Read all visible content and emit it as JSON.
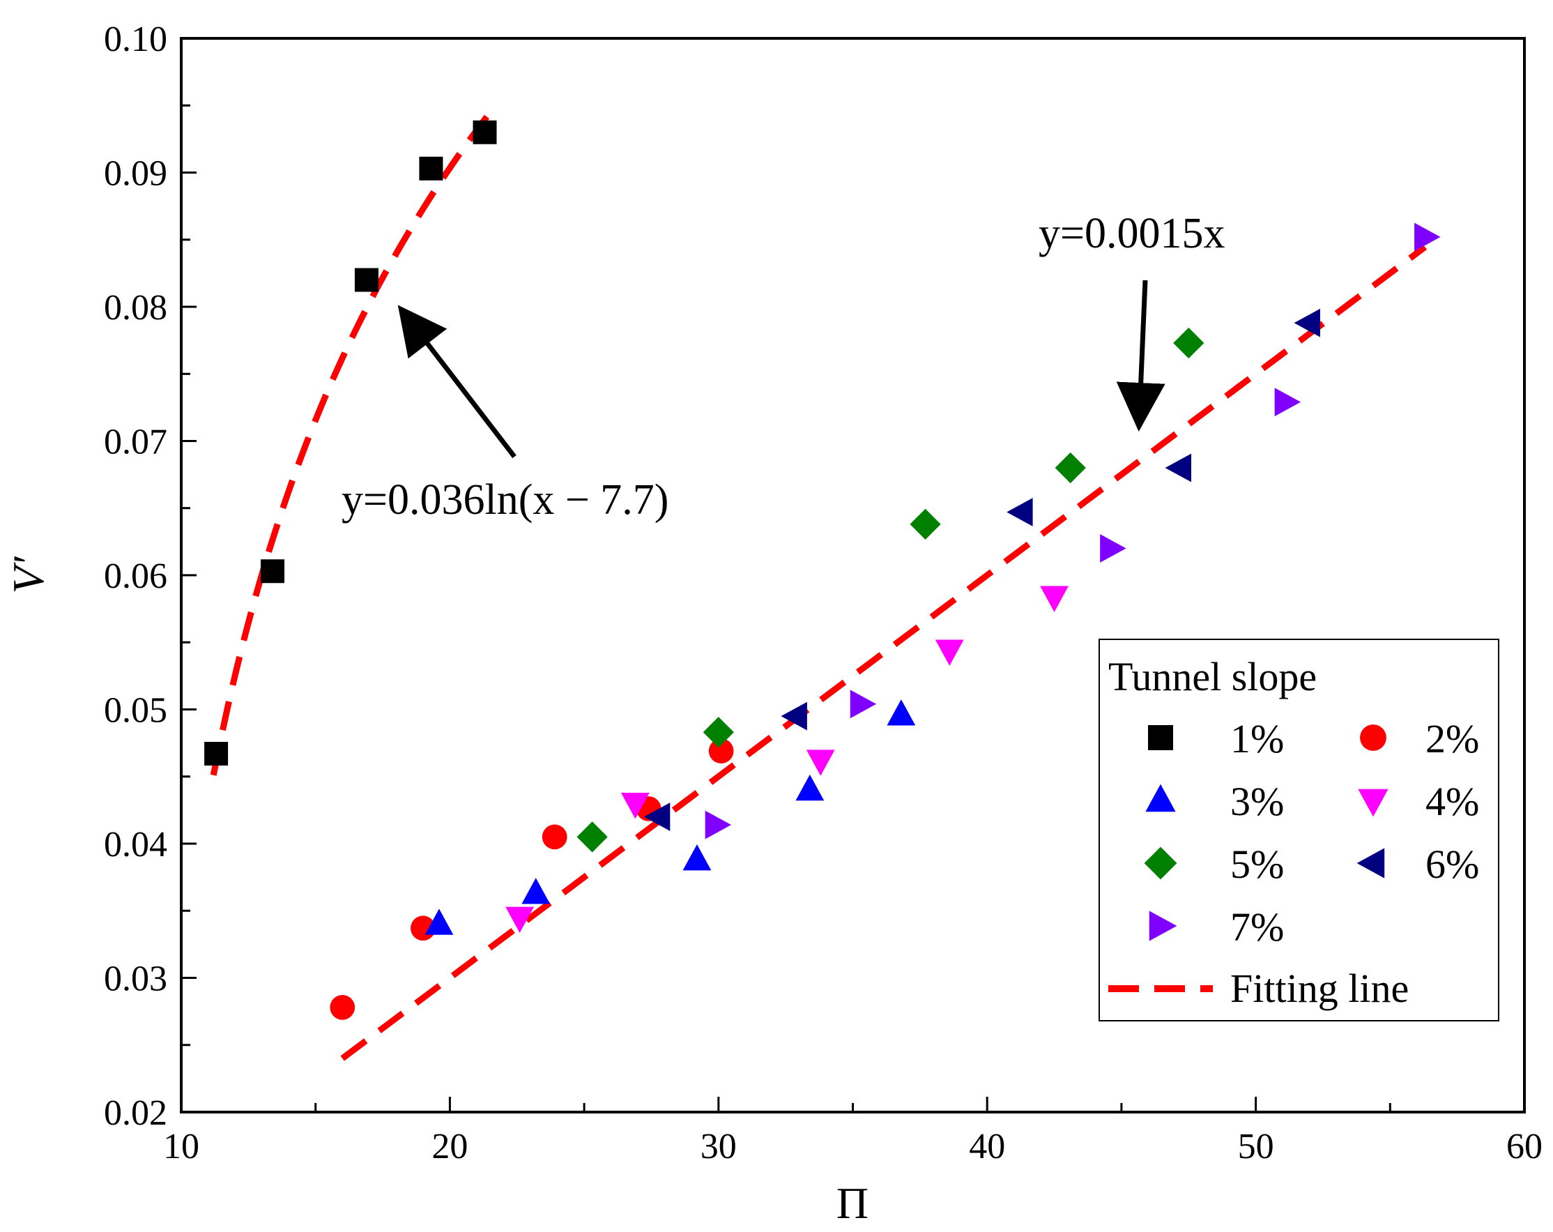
{
  "chart_data": {
    "type": "scatter",
    "title": "",
    "xlabel": "Π",
    "ylabel": "V′",
    "xlim": [
      10,
      60
    ],
    "ylim": [
      0.02,
      0.1
    ],
    "xticks": [
      10,
      20,
      30,
      40,
      50,
      60
    ],
    "xtick_labels": [
      "10",
      "20",
      "30",
      "40",
      "50",
      "60"
    ],
    "yticks": [
      0.02,
      0.03,
      0.04,
      0.05,
      0.06,
      0.07,
      0.08,
      0.09,
      0.1
    ],
    "ytick_labels": [
      "0.02",
      "0.03",
      "0.04",
      "0.05",
      "0.06",
      "0.07",
      "0.08",
      "0.09",
      "0.10"
    ],
    "grid": false,
    "legend": {
      "title": "Tunnel slope",
      "placement": "bottom-right",
      "fit_label": "Fitting line"
    },
    "series": [
      {
        "name": "1%",
        "marker": "square",
        "color": "#000000",
        "x": [
          11.3,
          13.4,
          16.9,
          19.3,
          21.3
        ],
        "y": [
          0.0467,
          0.0603,
          0.082,
          0.0903,
          0.093
        ]
      },
      {
        "name": "2%",
        "marker": "circle",
        "color": "#ff0000",
        "x": [
          16.0,
          19.0,
          23.9,
          27.4,
          30.1
        ],
        "y": [
          0.0278,
          0.0337,
          0.0405,
          0.0426,
          0.0469
        ]
      },
      {
        "name": "3%",
        "marker": "triangle-up",
        "color": "#0000ff",
        "x": [
          19.6,
          23.2,
          29.2,
          33.4,
          36.8
        ],
        "y": [
          0.034,
          0.0363,
          0.0388,
          0.044,
          0.0496
        ]
      },
      {
        "name": "4%",
        "marker": "triangle-down",
        "color": "#ff00ff",
        "x": [
          22.6,
          26.9,
          33.8,
          38.6,
          42.5
        ],
        "y": [
          0.0345,
          0.043,
          0.0462,
          0.0544,
          0.0584
        ]
      },
      {
        "name": "5%",
        "marker": "diamond",
        "color": "#008000",
        "x": [
          25.3,
          30.0,
          37.7,
          43.1,
          47.5
        ],
        "y": [
          0.0405,
          0.0483,
          0.0638,
          0.068,
          0.0773
        ]
      },
      {
        "name": "6%",
        "marker": "triangle-left",
        "color": "#000080",
        "x": [
          27.8,
          32.9,
          41.3,
          47.2,
          52.0
        ],
        "y": [
          0.042,
          0.0495,
          0.0647,
          0.068,
          0.0788
        ]
      },
      {
        "name": "7%",
        "marker": "triangle-right",
        "color": "#8000ff",
        "x": [
          29.9,
          35.3,
          44.6,
          51.1,
          56.3
        ],
        "y": [
          0.0414,
          0.0504,
          0.062,
          0.0729,
          0.0852
        ]
      }
    ],
    "fits": [
      {
        "name": "Fitting line",
        "equation": "y=0.036ln(x − 7.7)",
        "form": "log",
        "a": 0.036,
        "shift": 7.7,
        "x_range": [
          11.2,
          21.5
        ],
        "color": "#ff0000"
      },
      {
        "name": "Fitting line",
        "equation": "y=0.0015x",
        "form": "linear",
        "slope": 0.0015,
        "x_range": [
          16.0,
          56.3
        ],
        "color": "#ff0000"
      }
    ],
    "annotations": [
      {
        "text": "y=0.036ln(x − 7.7)",
        "points_to": [
          17.3,
          0.081
        ]
      },
      {
        "text": "y=0.0015x",
        "points_to": [
          45.6,
          0.0698
        ]
      }
    ]
  }
}
